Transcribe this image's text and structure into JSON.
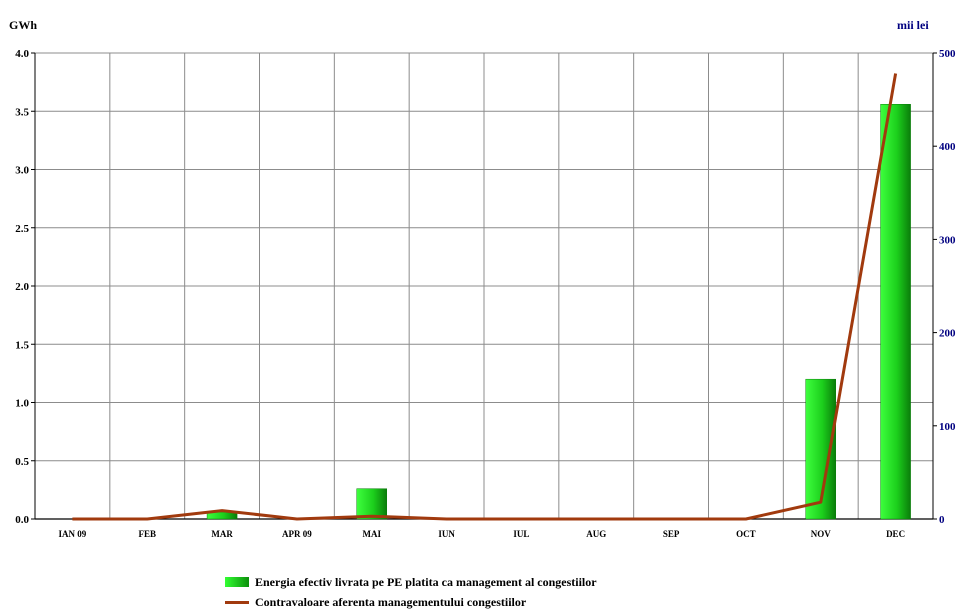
{
  "units": {
    "left": "GWh",
    "right": "mii lei"
  },
  "colors": {
    "bar": "#22cc22",
    "line": "#a13a0e",
    "grid": "#8c8c8c",
    "right_axis": "#000080"
  },
  "chart_data": {
    "type": "bar",
    "categories": [
      "IAN 09",
      "FEB",
      "MAR",
      "APR 09",
      "MAI",
      "IUN",
      "IUL",
      "AUG",
      "SEP",
      "OCT",
      "NOV",
      "DEC"
    ],
    "series": [
      {
        "name": "Energia efectiv livrata pe PE platita ca management al congestiilor",
        "type": "bar",
        "axis": "left",
        "values": [
          0,
          0,
          0.06,
          0,
          0.26,
          0,
          0,
          0,
          0,
          0,
          1.2,
          3.56
        ]
      },
      {
        "name": "Contravaloare aferenta managementului congestiilor",
        "type": "line",
        "axis": "right",
        "values": [
          0,
          0,
          9,
          0,
          3,
          0,
          0,
          0,
          0,
          0,
          18,
          478
        ]
      }
    ],
    "y_left": {
      "label": "GWh",
      "range": [
        0,
        4
      ],
      "ticks": [
        "0.0",
        "0.5",
        "1.0",
        "1.5",
        "2.0",
        "2.5",
        "3.0",
        "3.5",
        "4.0"
      ]
    },
    "y_right": {
      "label": "mii lei",
      "range": [
        0,
        500
      ],
      "ticks": [
        "0",
        "100",
        "200",
        "300",
        "400",
        "500"
      ]
    },
    "grid": true,
    "legend_position": "bottom"
  }
}
